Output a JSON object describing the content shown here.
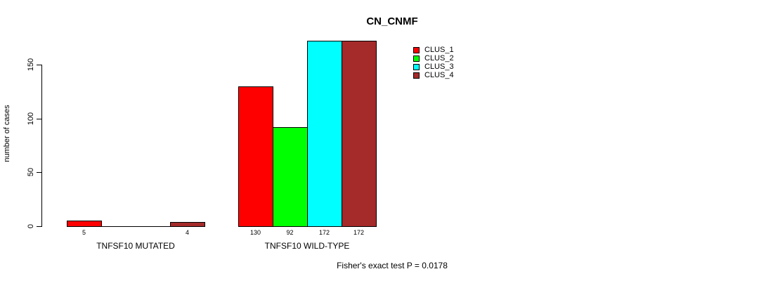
{
  "chart_data": {
    "type": "bar",
    "title": "CN_CNMF",
    "ylabel": "number of cases",
    "xlabel": "",
    "groups": [
      "TNFSF10 MUTATED",
      "TNFSF10 WILD-TYPE"
    ],
    "series": [
      {
        "name": "CLUS_1",
        "color": "#FF0000",
        "values": [
          5,
          130
        ]
      },
      {
        "name": "CLUS_2",
        "color": "#00FF00",
        "values": [
          0,
          92
        ]
      },
      {
        "name": "CLUS_3",
        "color": "#00FFFF",
        "values": [
          0,
          172
        ]
      },
      {
        "name": "CLUS_4",
        "color": "#A52A2A",
        "values": [
          4,
          172
        ]
      }
    ],
    "yticks": [
      0,
      50,
      100,
      150
    ],
    "ylim": [
      0,
      172
    ],
    "grid": false,
    "legend_position": "top-right",
    "bar_value_labels": {
      "mutated": [
        "5",
        "",
        "",
        "4"
      ],
      "wild_type": [
        "130",
        "92",
        "172",
        "172"
      ]
    },
    "annotation": "Fisher's exact test P = 0.0178"
  }
}
